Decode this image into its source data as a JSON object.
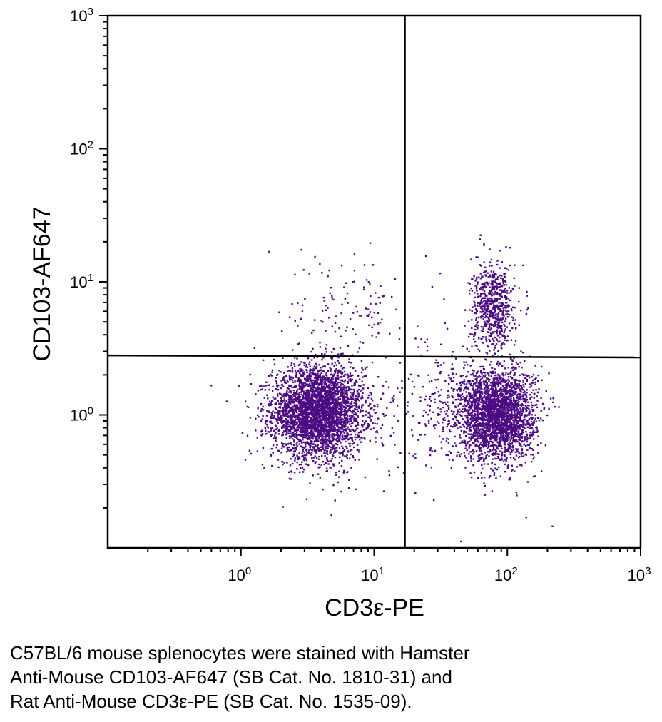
{
  "chart_data": {
    "type": "scatter",
    "title": "",
    "xlabel": "CD3ε-PE",
    "ylabel": "CD103-AF647",
    "xscale": "log",
    "yscale": "log",
    "xlim": [
      0.1,
      1000
    ],
    "ylim": [
      0.1,
      1000
    ],
    "x_ticks": [
      {
        "value": 1,
        "base": "10",
        "exp": "0"
      },
      {
        "value": 10,
        "base": "10",
        "exp": "1"
      },
      {
        "value": 100,
        "base": "10",
        "exp": "2"
      },
      {
        "value": 1000,
        "base": "10",
        "exp": "3"
      }
    ],
    "y_ticks": [
      {
        "value": 1,
        "base": "10",
        "exp": "0"
      },
      {
        "value": 10,
        "base": "10",
        "exp": "1"
      },
      {
        "value": 100,
        "base": "10",
        "exp": "2"
      },
      {
        "value": 1000,
        "base": "10",
        "exp": "3"
      }
    ],
    "gates": {
      "vertical_x": 17,
      "horizontal_y_left": 2.8,
      "horizontal_y_right": 2.7
    },
    "dot_color": "#4b0a82",
    "grid": false,
    "legend": "none",
    "series": [
      {
        "populations": [
          {
            "x": 3.8,
            "y": 1.05,
            "spread_x": 0.17,
            "spread_y": 0.17,
            "count": 3600
          },
          {
            "x": 85,
            "y": 1.0,
            "spread_x": 0.14,
            "spread_y": 0.17,
            "count": 2600
          },
          {
            "x": 78,
            "y": 6.5,
            "spread_x": 0.08,
            "spread_y": 0.16,
            "count": 650
          },
          {
            "x": 6.5,
            "y": 7,
            "spread_x": 0.22,
            "spread_y": 0.2,
            "count": 120
          },
          {
            "x": 45,
            "y": 1.2,
            "spread_x": 0.22,
            "spread_y": 0.22,
            "count": 350
          },
          {
            "x": 10,
            "y": 1.1,
            "spread_x": 0.55,
            "spread_y": 0.35,
            "count": 120
          }
        ]
      }
    ]
  },
  "caption": {
    "lines": [
      "C57BL/6 mouse splenocytes were stained with Hamster",
      "Anti-Mouse CD103-AF647 (SB Cat. No. 1810-31) and",
      "Rat Anti-Mouse CD3ε-PE (SB Cat. No. 1535-09)."
    ]
  }
}
